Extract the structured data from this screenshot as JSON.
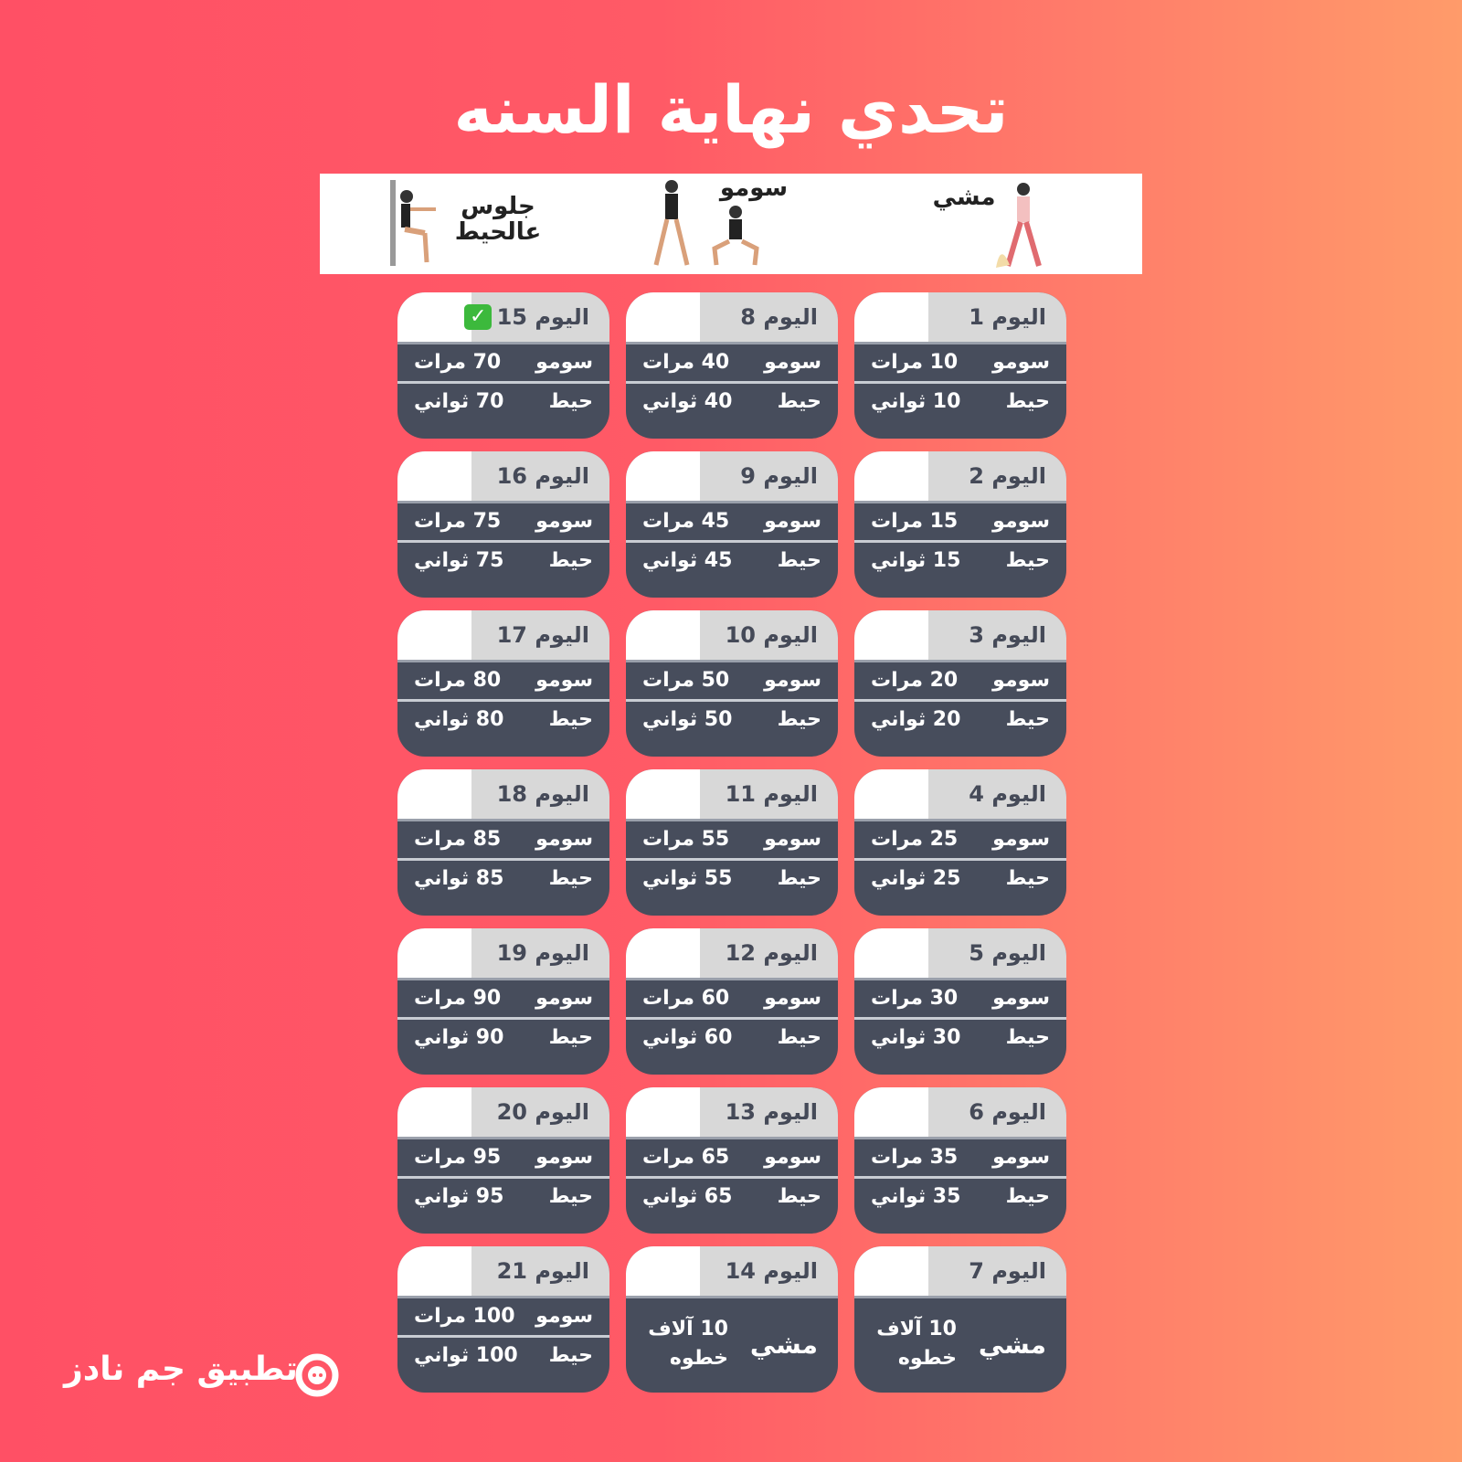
{
  "title": "تحدي نهاية السنه",
  "banner": {
    "wall_sit": "جلوس عالحيط",
    "sumo": "سومو",
    "walk": "مشي"
  },
  "labels": {
    "day": "اليوم",
    "sumo": "سومو",
    "wall": "حيط",
    "reps": "مرات",
    "seconds": "ثواني",
    "walk": "مشي",
    "walk_value": "10 آلاف خطوه"
  },
  "days": [
    {
      "day": 1,
      "sumo": 10,
      "wall": 10
    },
    {
      "day": 2,
      "sumo": 15,
      "wall": 15
    },
    {
      "day": 3,
      "sumo": 20,
      "wall": 20
    },
    {
      "day": 4,
      "sumo": 25,
      "wall": 25
    },
    {
      "day": 5,
      "sumo": 30,
      "wall": 30
    },
    {
      "day": 6,
      "sumo": 35,
      "wall": 35
    },
    {
      "day": 7,
      "walk": true
    },
    {
      "day": 8,
      "sumo": 40,
      "wall": 40
    },
    {
      "day": 9,
      "sumo": 45,
      "wall": 45
    },
    {
      "day": 10,
      "sumo": 50,
      "wall": 50
    },
    {
      "day": 11,
      "sumo": 55,
      "wall": 55
    },
    {
      "day": 12,
      "sumo": 60,
      "wall": 60
    },
    {
      "day": 13,
      "sumo": 65,
      "wall": 65
    },
    {
      "day": 14,
      "walk": true
    },
    {
      "day": 15,
      "sumo": 70,
      "wall": 70,
      "checked": true
    },
    {
      "day": 16,
      "sumo": 75,
      "wall": 75
    },
    {
      "day": 17,
      "sumo": 80,
      "wall": 80
    },
    {
      "day": 18,
      "sumo": 85,
      "wall": 85
    },
    {
      "day": 19,
      "sumo": 90,
      "wall": 90
    },
    {
      "day": 20,
      "sumo": 95,
      "wall": 95
    },
    {
      "day": 21,
      "sumo": 100,
      "wall": 100
    }
  ],
  "logo": {
    "text": "تطبيق جم نادز"
  },
  "colors": {
    "card": "#474d5c",
    "header": "#d8d8d8",
    "check": "#3cb93c"
  }
}
